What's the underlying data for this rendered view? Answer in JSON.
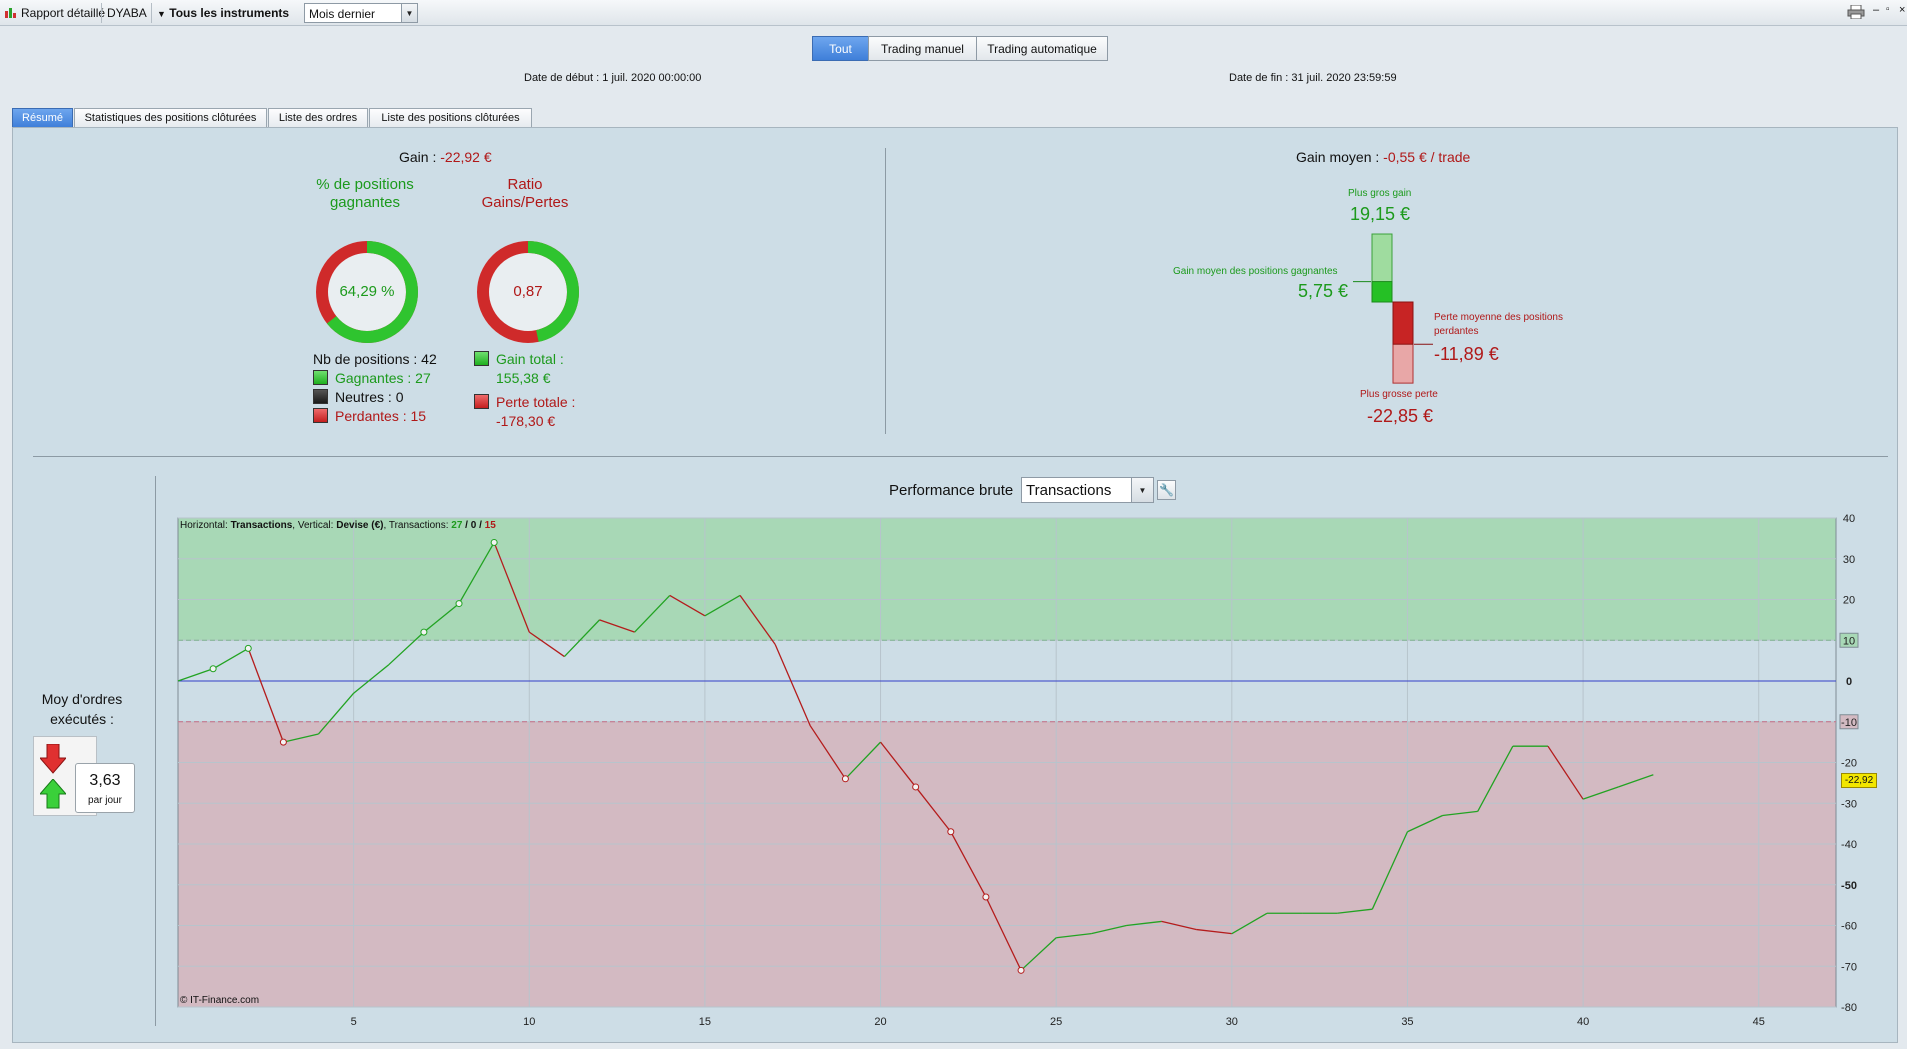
{
  "titlebar": {
    "report_label": "Rapport détaillé",
    "account": "DYABA",
    "instruments": "Tous les instruments",
    "period": "Mois dernier"
  },
  "segments": [
    "Tout",
    "Trading manuel",
    "Trading automatique"
  ],
  "dates": {
    "start_label": "Date de début :",
    "start_value": "1 juil. 2020 00:00:00",
    "end_label": "Date de fin :",
    "end_value": "31 juil. 2020 23:59:59"
  },
  "tabs": [
    "Résumé",
    "Statistiques des positions clôturées",
    "Liste des ordres",
    "Liste des positions clôturées"
  ],
  "summary": {
    "gain_label": "Gain :",
    "gain_value": "-22,92 €",
    "pct_title": "% de positions gagnantes",
    "pct_value": "64,29 %",
    "pct_fraction": 0.6429,
    "ratio_title": "Ratio Gains/Pertes",
    "ratio_value": "0,87",
    "ratio_fraction": 0.4657,
    "nb_positions": "Nb de positions : 42",
    "gagnantes": "Gagnantes : 27",
    "neutres": "Neutres : 0",
    "perdantes": "Perdantes : 15",
    "gain_total_label": "Gain total :",
    "gain_total_value": "155,38 €",
    "perte_totale_label": "Perte totale :",
    "perte_totale_value": "-178,30 €"
  },
  "avg": {
    "title_label": "Gain moyen :",
    "title_value": "-0,55 € / trade",
    "max_gain_label": "Plus gros gain",
    "max_gain_value": "19,15 €",
    "avg_gain_label": "Gain moyen des positions gagnantes",
    "avg_gain_value": "5,75 €",
    "avg_loss_label_1": "Perte moyenne des positions",
    "avg_loss_label_2": "perdantes",
    "avg_loss_value": "-11,89 €",
    "max_loss_label": "Plus grosse perte",
    "max_loss_value": "-22,85 €",
    "max_gain": 19.15,
    "avg_gain": 5.75,
    "avg_loss": -11.89,
    "max_loss": -22.85
  },
  "orders": {
    "title_1": "Moy d'ordres",
    "title_2": "exécutés :",
    "value": "3,63",
    "unit": "par jour"
  },
  "perf": {
    "title": "Performance brute",
    "select": "Transactions",
    "legend_h": "Horizontal:",
    "legend_h_val": "Transactions",
    "legend_v": ", Vertical:",
    "legend_v_val": "Devise (€)",
    "legend_t": ", Transactions:",
    "legend_win": "27",
    "legend_slash1": " / ",
    "legend_neu": "0",
    "legend_slash2": " / ",
    "legend_loss": "15",
    "copyright": "© IT-Finance.com",
    "last_value_label": "-22,92"
  },
  "colors": {
    "win": "#1c9a1c",
    "loss": "#b01818",
    "accent": "#3f7fd9"
  },
  "chart_data": {
    "type": "line",
    "x": [
      0,
      1,
      2,
      3,
      4,
      5,
      6,
      7,
      8,
      9,
      10,
      11,
      12,
      13,
      14,
      15,
      16,
      17,
      18,
      19,
      20,
      21,
      22,
      23,
      24,
      25,
      26,
      27,
      28,
      29,
      30,
      31,
      32,
      33,
      34,
      35,
      36,
      37,
      38,
      39,
      40,
      41,
      42
    ],
    "values": [
      0,
      3,
      8,
      -15,
      -13,
      -3,
      4,
      12,
      19,
      34,
      12,
      6,
      15,
      12,
      21,
      16,
      21,
      9,
      -11,
      -24,
      -15,
      -26,
      -37,
      -53,
      -71,
      -63,
      -62,
      -60,
      -59,
      -61,
      -62,
      -57,
      -57,
      -57,
      -56,
      -37,
      -33,
      -32,
      -16,
      -16,
      -29,
      -26,
      -23
    ],
    "xlabel": "Transactions",
    "ylabel": "Devise (€)",
    "xticks": [
      5,
      10,
      15,
      20,
      25,
      30,
      35,
      40,
      45
    ],
    "yticks": [
      40,
      30,
      20,
      10,
      0,
      -10,
      -20,
      -30,
      -40,
      -50,
      -60,
      -70,
      -80
    ],
    "xlim": [
      0,
      47.2
    ],
    "ylim": [
      -80,
      40
    ],
    "thresholds": [
      10,
      -10
    ],
    "markers": [
      1,
      2,
      3,
      7,
      8,
      9,
      19,
      21,
      22,
      23,
      24
    ]
  }
}
